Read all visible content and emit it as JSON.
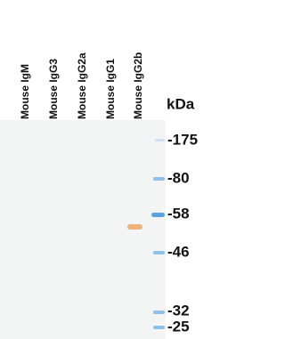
{
  "lanes": [
    "Mouse IgM",
    "Mouse IgG3",
    "Mouse IgG2a",
    "Mouse IgG1",
    "Mouse IgG2b"
  ],
  "unit": "kDa",
  "markers": [
    "-175",
    "-80",
    "-58",
    "-46",
    "-32",
    "-25"
  ]
}
